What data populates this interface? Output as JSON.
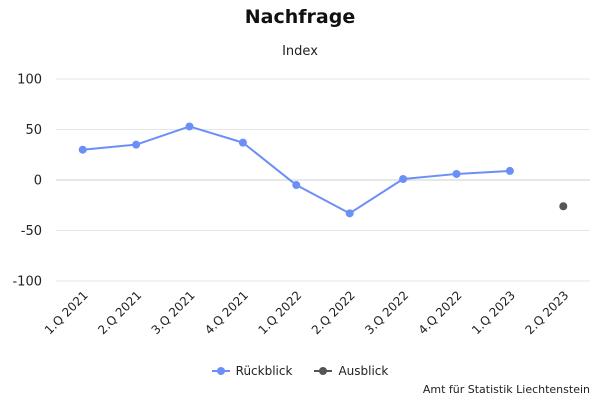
{
  "chart_data": {
    "type": "line",
    "title": "Nachfrage",
    "subtitle": "Index",
    "categories": [
      "1.Q 2021",
      "2.Q 2021",
      "3.Q 2021",
      "4.Q 2021",
      "1.Q 2022",
      "2.Q 2022",
      "3.Q 2022",
      "4.Q 2022",
      "1.Q 2023",
      "2.Q 2023"
    ],
    "ylim": [
      -100,
      100
    ],
    "yticks": [
      100,
      50,
      0,
      -50,
      -100
    ],
    "grid": true,
    "legend_position": "bottom-center",
    "series": [
      {
        "name": "Rückblick",
        "color": "#6b8ff7",
        "values": [
          30,
          35,
          53,
          37,
          -5,
          -33,
          1,
          6,
          9,
          null
        ],
        "style": "line-with-markers"
      },
      {
        "name": "Ausblick",
        "color": "#555555",
        "values": [
          null,
          null,
          null,
          null,
          null,
          null,
          null,
          null,
          null,
          -26
        ],
        "style": "markers"
      }
    ]
  },
  "source": "Amt für Statistik Liechtenstein"
}
